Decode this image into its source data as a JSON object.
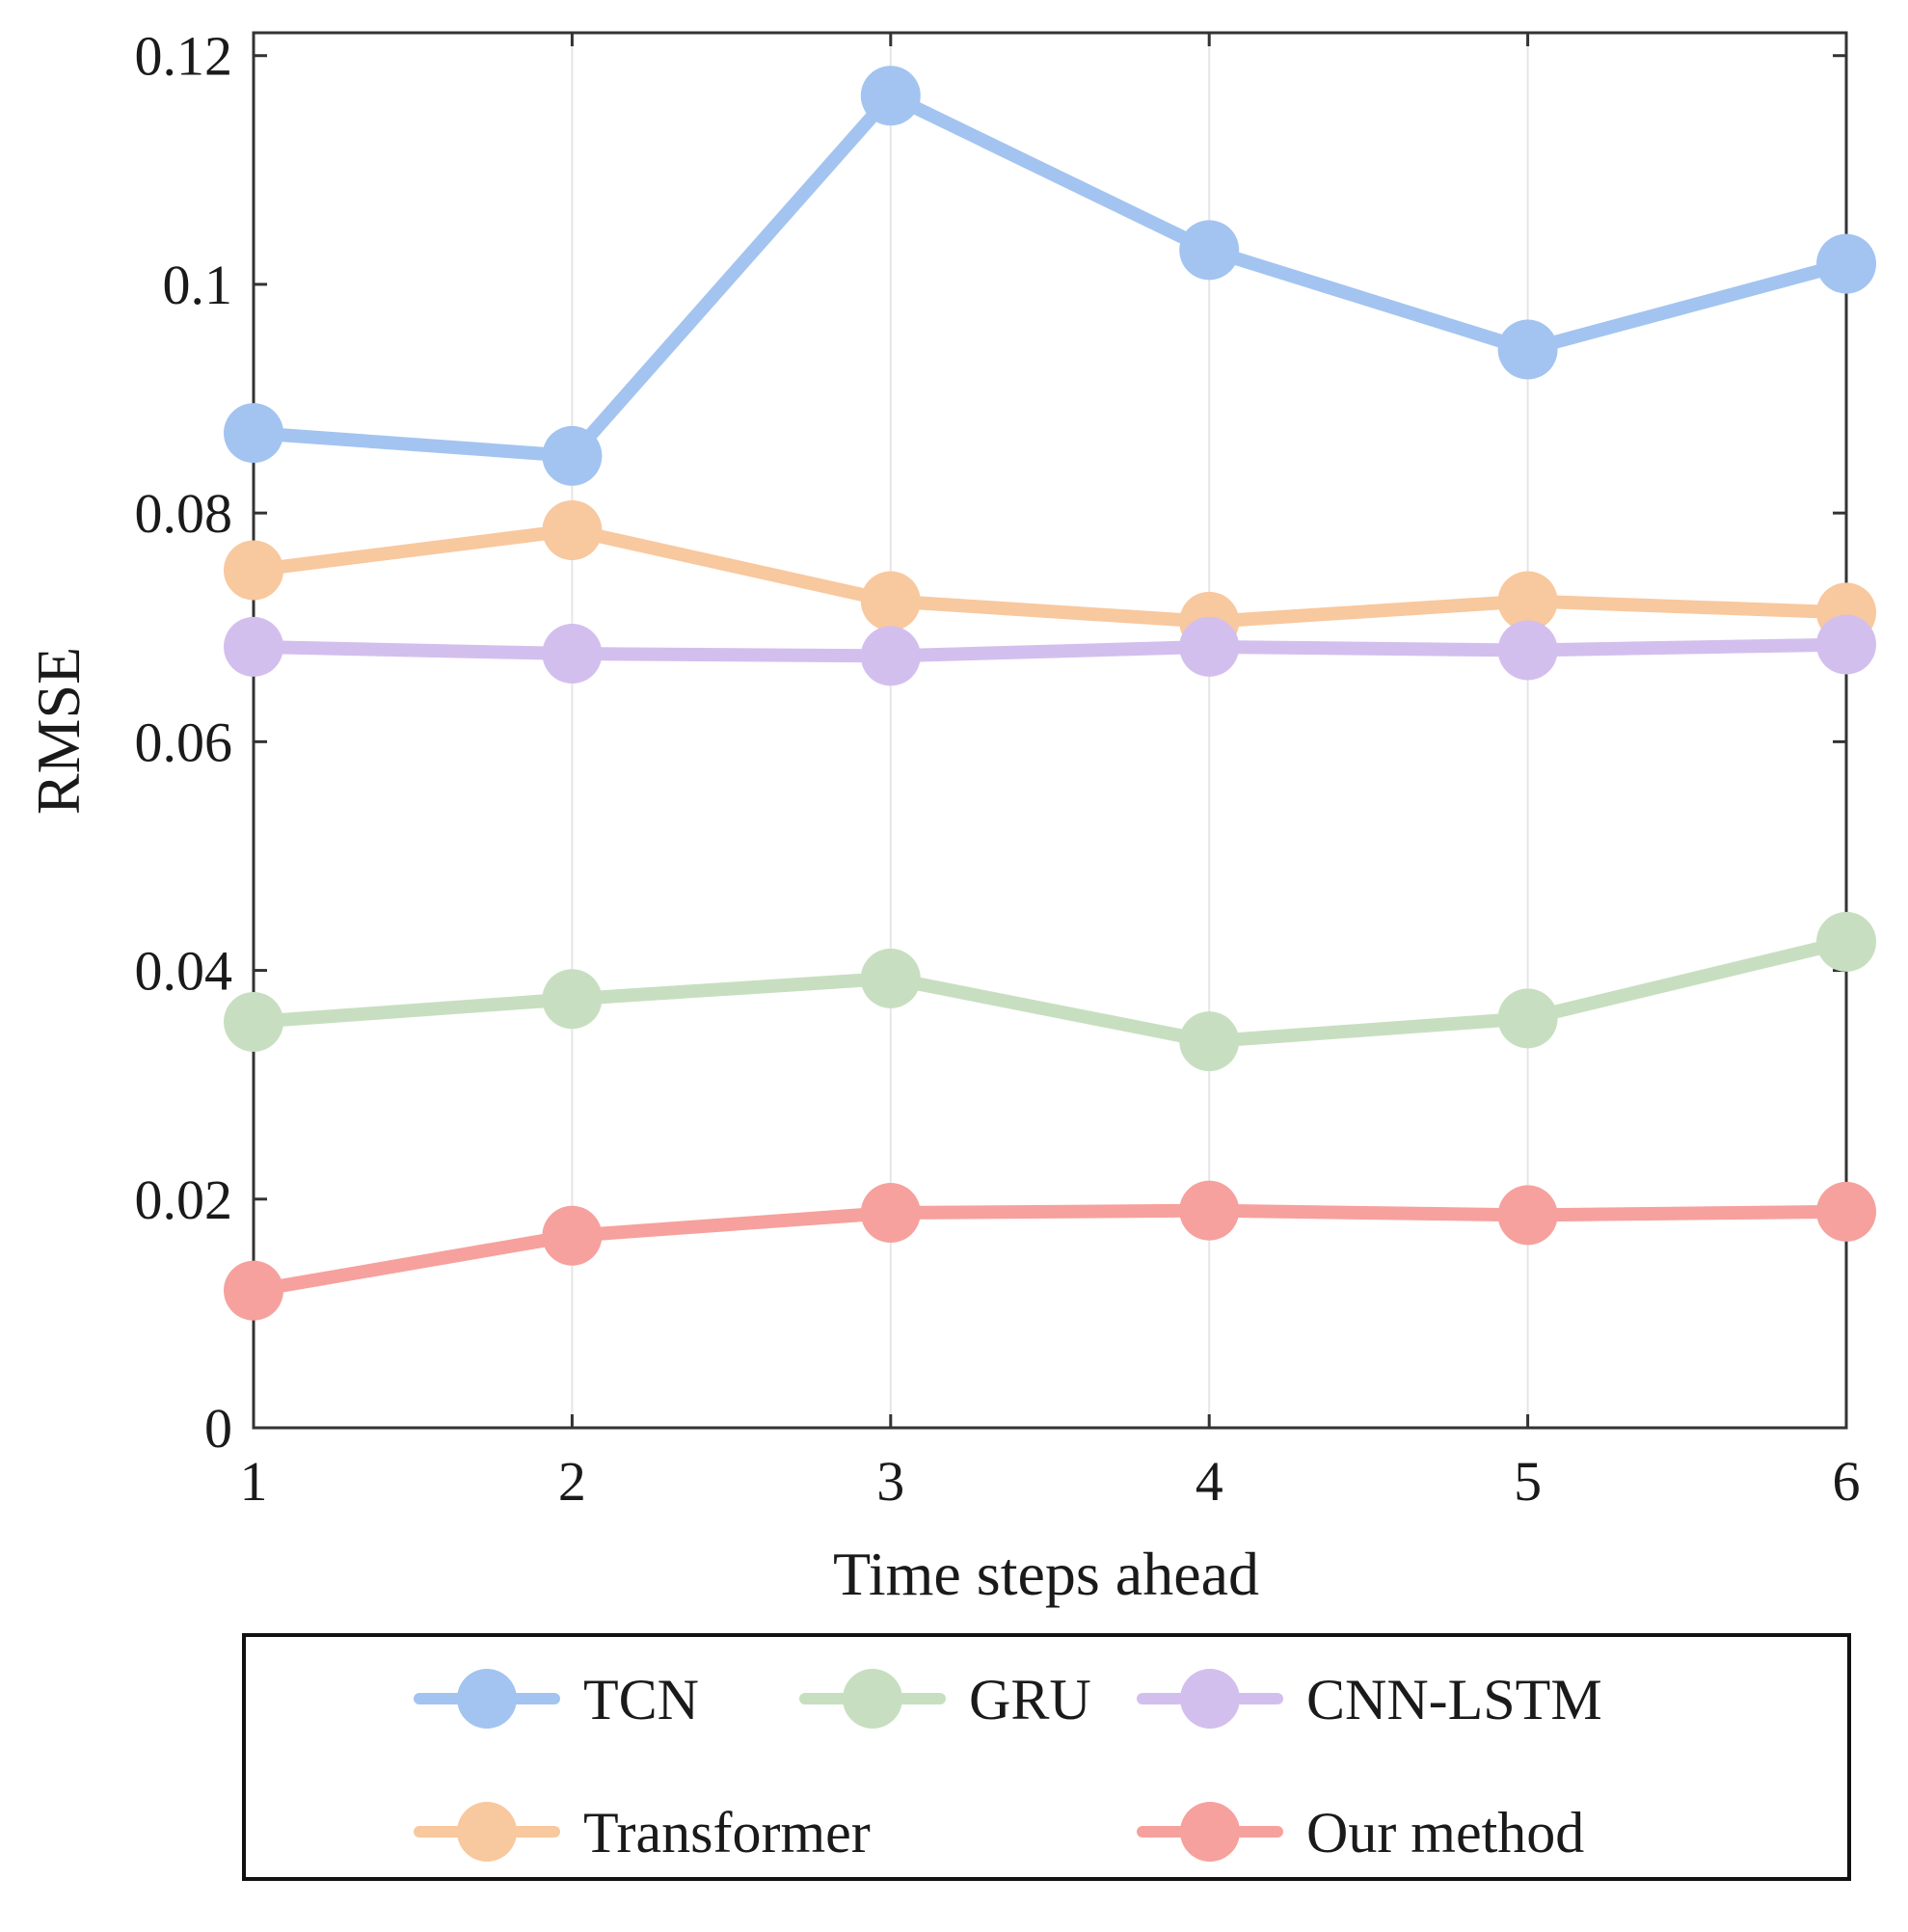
{
  "chart_data": {
    "type": "line",
    "xlabel": "Time steps ahead",
    "ylabel": "RMSE",
    "x": [
      1,
      2,
      3,
      4,
      5,
      6
    ],
    "xticks": [
      "1",
      "2",
      "3",
      "4",
      "5",
      "6"
    ],
    "yticks": [
      "0",
      "0.02",
      "0.04",
      "0.06",
      "0.08",
      "0.1",
      "0.12"
    ],
    "ylim": [
      0,
      0.122
    ],
    "xlim": [
      1,
      6
    ],
    "grid": "vertical",
    "legend_position": "bottom",
    "series": [
      {
        "name": "TCN",
        "color": "#a3c4f0",
        "values": [
          0.087,
          0.085,
          0.1165,
          0.103,
          0.0943,
          0.1018
        ]
      },
      {
        "name": "Transformer",
        "color": "#f8c89e",
        "values": [
          0.075,
          0.0785,
          0.0723,
          0.0705,
          0.0723,
          0.0713
        ]
      },
      {
        "name": "CNN-LSTM",
        "color": "#d3bfee",
        "values": [
          0.0683,
          0.0677,
          0.0675,
          0.0683,
          0.068,
          0.0685
        ]
      },
      {
        "name": "GRU",
        "color": "#c7dfc0",
        "values": [
          0.0355,
          0.0375,
          0.0393,
          0.0338,
          0.0358,
          0.0425
        ]
      },
      {
        "name": "Our method",
        "color": "#f6a19d",
        "values": [
          0.012,
          0.0168,
          0.0188,
          0.019,
          0.0186,
          0.0189
        ]
      }
    ],
    "legend_rows": [
      [
        "TCN",
        "GRU",
        "CNN-LSTM"
      ],
      [
        "Transformer",
        "Our method"
      ]
    ]
  }
}
